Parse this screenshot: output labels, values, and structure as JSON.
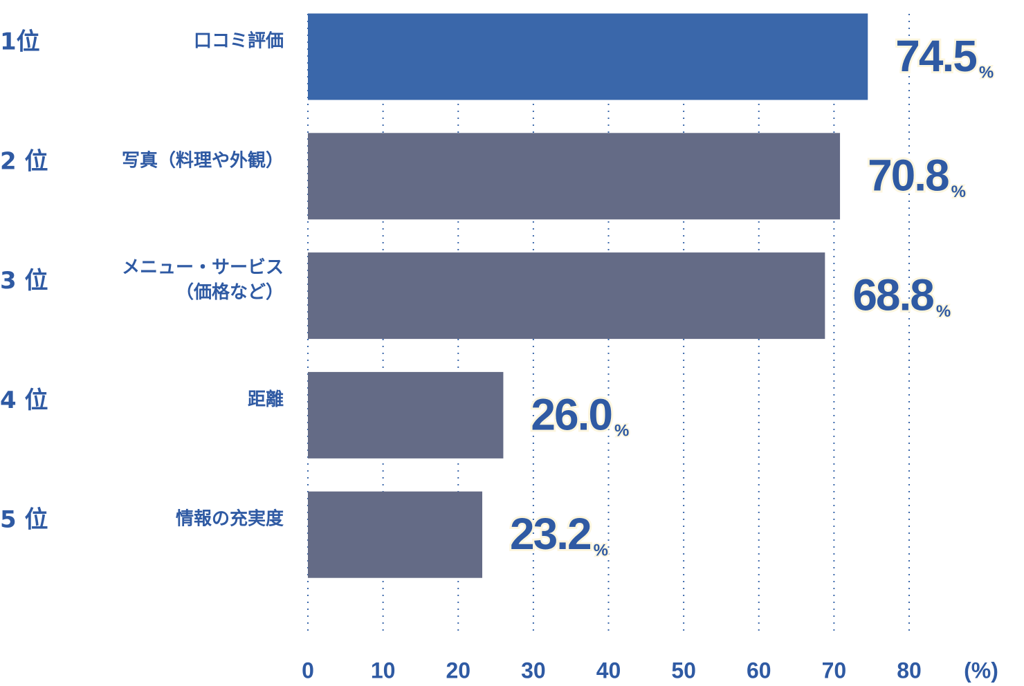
{
  "chart_data": {
    "type": "barh",
    "ranks": [
      "1位",
      "2 位",
      "3 位",
      "4 位",
      "5 位"
    ],
    "categories": [
      [
        "口コミ評価"
      ],
      [
        "写真（料理や外観）"
      ],
      [
        "メニュー・サービス",
        "（価格など）"
      ],
      [
        "距離"
      ],
      [
        "情報の充実度"
      ]
    ],
    "values": [
      74.5,
      70.8,
      68.8,
      26.0,
      23.2
    ],
    "value_labels": [
      "74.5",
      "70.8",
      "68.8",
      "26.0",
      "23.2"
    ],
    "value_unit": "%",
    "colors": [
      "#3a67aa",
      "#646b86",
      "#646b86",
      "#646b86",
      "#646b86"
    ],
    "xlabel": "(%)",
    "xlim": [
      0,
      80
    ],
    "xticks": [
      0,
      10,
      20,
      30,
      40,
      50,
      60,
      70,
      80
    ],
    "grid": true
  }
}
